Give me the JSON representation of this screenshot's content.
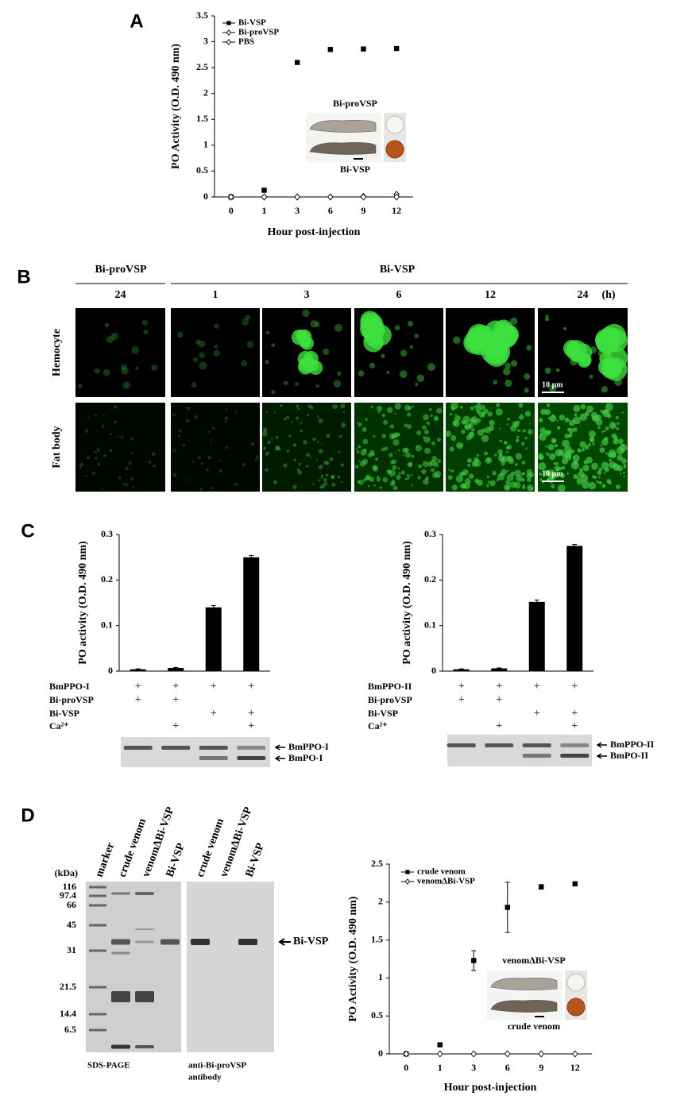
{
  "panels": [
    "A",
    "B",
    "C",
    "D"
  ],
  "chart_data": [
    {
      "type": "line",
      "ylabel": "PO Activity (O.D. 490 nm)",
      "xlabel": "Hour post-injection",
      "categories": [
        "0",
        "1",
        "3",
        "6",
        "9",
        "12"
      ],
      "series": [
        {
          "name": "Bi-VSP",
          "color": "#000000",
          "marker": "square",
          "values": [
            0,
            0.13,
            2.6,
            2.85,
            2.86,
            2.87
          ],
          "errors": [
            0,
            0.01,
            0.02,
            0.04,
            0.03,
            0.02
          ]
        },
        {
          "name": "Bi-proVSP",
          "color": "#000000",
          "marker": "diamond",
          "values": [
            0,
            0,
            0,
            0,
            0.01,
            0.05
          ],
          "errors": [
            0,
            0,
            0,
            0,
            0,
            0.02
          ]
        },
        {
          "name": "PBS",
          "color": "#000000",
          "marker": "diamond",
          "values": [
            0,
            0,
            0,
            0,
            0,
            0
          ],
          "errors": [
            0,
            0,
            0,
            0,
            0,
            0
          ]
        }
      ],
      "ylim": [
        0,
        3.5
      ],
      "yticks": [
        0,
        0.5,
        1,
        1.5,
        2,
        2.5,
        3,
        3.5
      ],
      "legend": "upper left",
      "inset_labels": [
        "Bi-proVSP",
        "Bi-VSP"
      ]
    },
    {
      "type": "bar",
      "ylabel": "PO activity (O.D. 490 nm)",
      "color": "#000000",
      "values": [
        0.004,
        0.007,
        0.14,
        0.25
      ],
      "errors": [
        0.001,
        0.001,
        0.004,
        0.004
      ],
      "ylim": [
        0,
        0.3
      ],
      "yticks": [
        0,
        0.1,
        0.2,
        0.3
      ],
      "conditions": [
        {
          "name": "BmPPO-I",
          "marks": [
            "+",
            "+",
            "+",
            "+"
          ]
        },
        {
          "name": "Bi-proVSP",
          "marks": [
            "+",
            "+",
            null,
            null
          ]
        },
        {
          "name": "Bi-VSP",
          "marks": [
            null,
            null,
            "+",
            "+"
          ]
        },
        {
          "name": "Ca²⁺",
          "marks": [
            null,
            "+",
            null,
            "+"
          ]
        }
      ],
      "blot_labels": [
        "BmPPO-I",
        "BmPO-I"
      ]
    },
    {
      "type": "bar",
      "ylabel": "PO activity (O.D. 490 nm)",
      "color": "#000000",
      "values": [
        0.004,
        0.006,
        0.152,
        0.275
      ],
      "errors": [
        0.001,
        0.001,
        0.004,
        0.003
      ],
      "ylim": [
        0,
        0.3
      ],
      "yticks": [
        0,
        0.1,
        0.2,
        0.3
      ],
      "conditions": [
        {
          "name": "BmPPO-II",
          "marks": [
            "+",
            "+",
            "+",
            "+"
          ]
        },
        {
          "name": "Bi-proVSP",
          "marks": [
            "+",
            "+",
            null,
            null
          ]
        },
        {
          "name": "Bi-VSP",
          "marks": [
            null,
            null,
            "+",
            "+"
          ]
        },
        {
          "name": "Ca²⁺",
          "marks": [
            null,
            "+",
            null,
            "+"
          ]
        }
      ],
      "blot_labels": [
        "BmPPO-II",
        "BmPO-II"
      ]
    },
    {
      "type": "line",
      "ylabel": "PO Activity (O.D. 490 nm)",
      "xlabel": "Hour post-injection",
      "categories": [
        "0",
        "1",
        "3",
        "6",
        "9",
        "12"
      ],
      "series": [
        {
          "name": "crude venom",
          "color": "#000000",
          "marker": "square",
          "values": [
            0,
            0.12,
            1.23,
            1.93,
            2.2,
            2.24
          ],
          "errors": [
            0,
            0.02,
            0.13,
            0.33,
            0.03,
            0.01
          ]
        },
        {
          "name": "venomΔBi-VSP",
          "color": "#000000",
          "marker": "diamond",
          "values": [
            0,
            0,
            0,
            0,
            0,
            0
          ],
          "errors": [
            0,
            0,
            0,
            0,
            0,
            0
          ]
        }
      ],
      "ylim": [
        0,
        2.5
      ],
      "yticks": [
        0,
        0.5,
        1,
        1.5,
        2,
        2.5
      ],
      "legend": "upper left",
      "inset_labels": [
        "venomΔBi-VSP",
        "crude venom"
      ]
    }
  ],
  "microscopy": {
    "groups": [
      "Bi-proVSP",
      "Bi-VSP"
    ],
    "timepoints": [
      "24",
      "1",
      "3",
      "6",
      "12",
      "24"
    ],
    "unit": "(h)",
    "rows": [
      "Hemocyte",
      "Fat body"
    ],
    "scale_bar": "10 µm"
  },
  "gels": {
    "kda_unit": "(kDa)",
    "kda": [
      "116",
      "97.4",
      "66",
      "45",
      "31",
      "21.5",
      "14.4",
      "6.5"
    ],
    "lanes_sds": [
      "marker",
      "crude venom",
      "venomΔBi-VSP",
      "Bi-VSP"
    ],
    "lanes_western": [
      "crude venom",
      "venomΔBi-VSP",
      "Bi-VSP"
    ],
    "band_label": "Bi-VSP",
    "captions": [
      "SDS-PAGE",
      [
        "anti-Bi-proVSP",
        "antibody"
      ]
    ]
  }
}
